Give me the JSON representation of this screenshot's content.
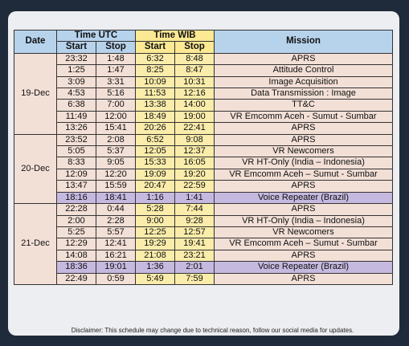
{
  "headers": {
    "date": "Date",
    "time_utc": "Time UTC",
    "time_wib": "Time WIB",
    "mission": "Mission",
    "start": "Start",
    "stop": "Stop"
  },
  "groups": [
    {
      "date": "19-Dec",
      "rows": [
        {
          "utc_start": "23:32",
          "utc_stop": "1:48",
          "wib_start": "6:32",
          "wib_stop": "8:48",
          "mission": "APRS"
        },
        {
          "utc_start": "1:25",
          "utc_stop": "1:47",
          "wib_start": "8:25",
          "wib_stop": "8:47",
          "mission": "Attitude Control"
        },
        {
          "utc_start": "3:09",
          "utc_stop": "3:31",
          "wib_start": "10:09",
          "wib_stop": "10:31",
          "mission": "Image Acquisition"
        },
        {
          "utc_start": "4:53",
          "utc_stop": "5:16",
          "wib_start": "11:53",
          "wib_stop": "12:16",
          "mission": "Data Transmission : Image"
        },
        {
          "utc_start": "6:38",
          "utc_stop": "7:00",
          "wib_start": "13:38",
          "wib_stop": "14:00",
          "mission": "TT&C"
        },
        {
          "utc_start": "11:49",
          "utc_stop": "12:00",
          "wib_start": "18:49",
          "wib_stop": "19:00",
          "mission": "VR Emcomm Aceh - Sumut - Sumbar"
        },
        {
          "utc_start": "13:26",
          "utc_stop": "15:41",
          "wib_start": "20:26",
          "wib_stop": "22:41",
          "mission": "APRS"
        }
      ]
    },
    {
      "date": "20-Dec",
      "rows": [
        {
          "utc_start": "23:52",
          "utc_stop": "2:08",
          "wib_start": "6:52",
          "wib_stop": "9:08",
          "mission": "APRS"
        },
        {
          "utc_start": "5:05",
          "utc_stop": "5:37",
          "wib_start": "12:05",
          "wib_stop": "12:37",
          "mission": "VR Newcomers"
        },
        {
          "utc_start": "8:33",
          "utc_stop": "9:05",
          "wib_start": "15:33",
          "wib_stop": "16:05",
          "mission": "VR HT-Only (India – Indonesia)"
        },
        {
          "utc_start": "12:09",
          "utc_stop": "12:20",
          "wib_start": "19:09",
          "wib_stop": "19:20",
          "mission": "VR Emcomm Aceh – Sumut - Sumbar"
        },
        {
          "utc_start": "13:47",
          "utc_stop": "15:59",
          "wib_start": "20:47",
          "wib_stop": "22:59",
          "mission": "APRS"
        },
        {
          "utc_start": "18:16",
          "utc_stop": "18:41",
          "wib_start": "1:16",
          "wib_stop": "1:41",
          "mission": "Voice Repeater (Brazil)",
          "highlight": true
        }
      ]
    },
    {
      "date": "21-Dec",
      "rows": [
        {
          "utc_start": "22:28",
          "utc_stop": "0:44",
          "wib_start": "5:28",
          "wib_stop": "7:44",
          "mission": "APRS"
        },
        {
          "utc_start": "2:00",
          "utc_stop": "2:28",
          "wib_start": "9:00",
          "wib_stop": "9:28",
          "mission": "VR HT-Only (India – Indonesia)"
        },
        {
          "utc_start": "5:25",
          "utc_stop": "5:57",
          "wib_start": "12:25",
          "wib_stop": "12:57",
          "mission": "VR Newcomers"
        },
        {
          "utc_start": "12:29",
          "utc_stop": "12:41",
          "wib_start": "19:29",
          "wib_stop": "19:41",
          "mission": "VR Emcomm Aceh – Sumut - Sumbar"
        },
        {
          "utc_start": "14:08",
          "utc_stop": "16:21",
          "wib_start": "21:08",
          "wib_stop": "23:21",
          "mission": "APRS"
        },
        {
          "utc_start": "18:36",
          "utc_stop": "19:01",
          "wib_start": "1:36",
          "wib_stop": "2:01",
          "mission": "Voice Repeater (Brazil)",
          "highlight": true
        },
        {
          "utc_start": "22:49",
          "utc_stop": "0:59",
          "wib_start": "5:49",
          "wib_stop": "7:59",
          "mission": "APRS"
        }
      ]
    }
  ],
  "disclaimer": "Disclaimer: This schedule may change due to technical reason, follow our social media for updates.",
  "colors": {
    "background": "#1f2b3a",
    "card": "#eceef1",
    "header_blue": "#b7d3ec",
    "header_yellow": "#fbe993",
    "cell_pink": "#f2dfd6",
    "cell_yellow": "#faecaa",
    "highlight_purple": "#c6b9e0"
  }
}
